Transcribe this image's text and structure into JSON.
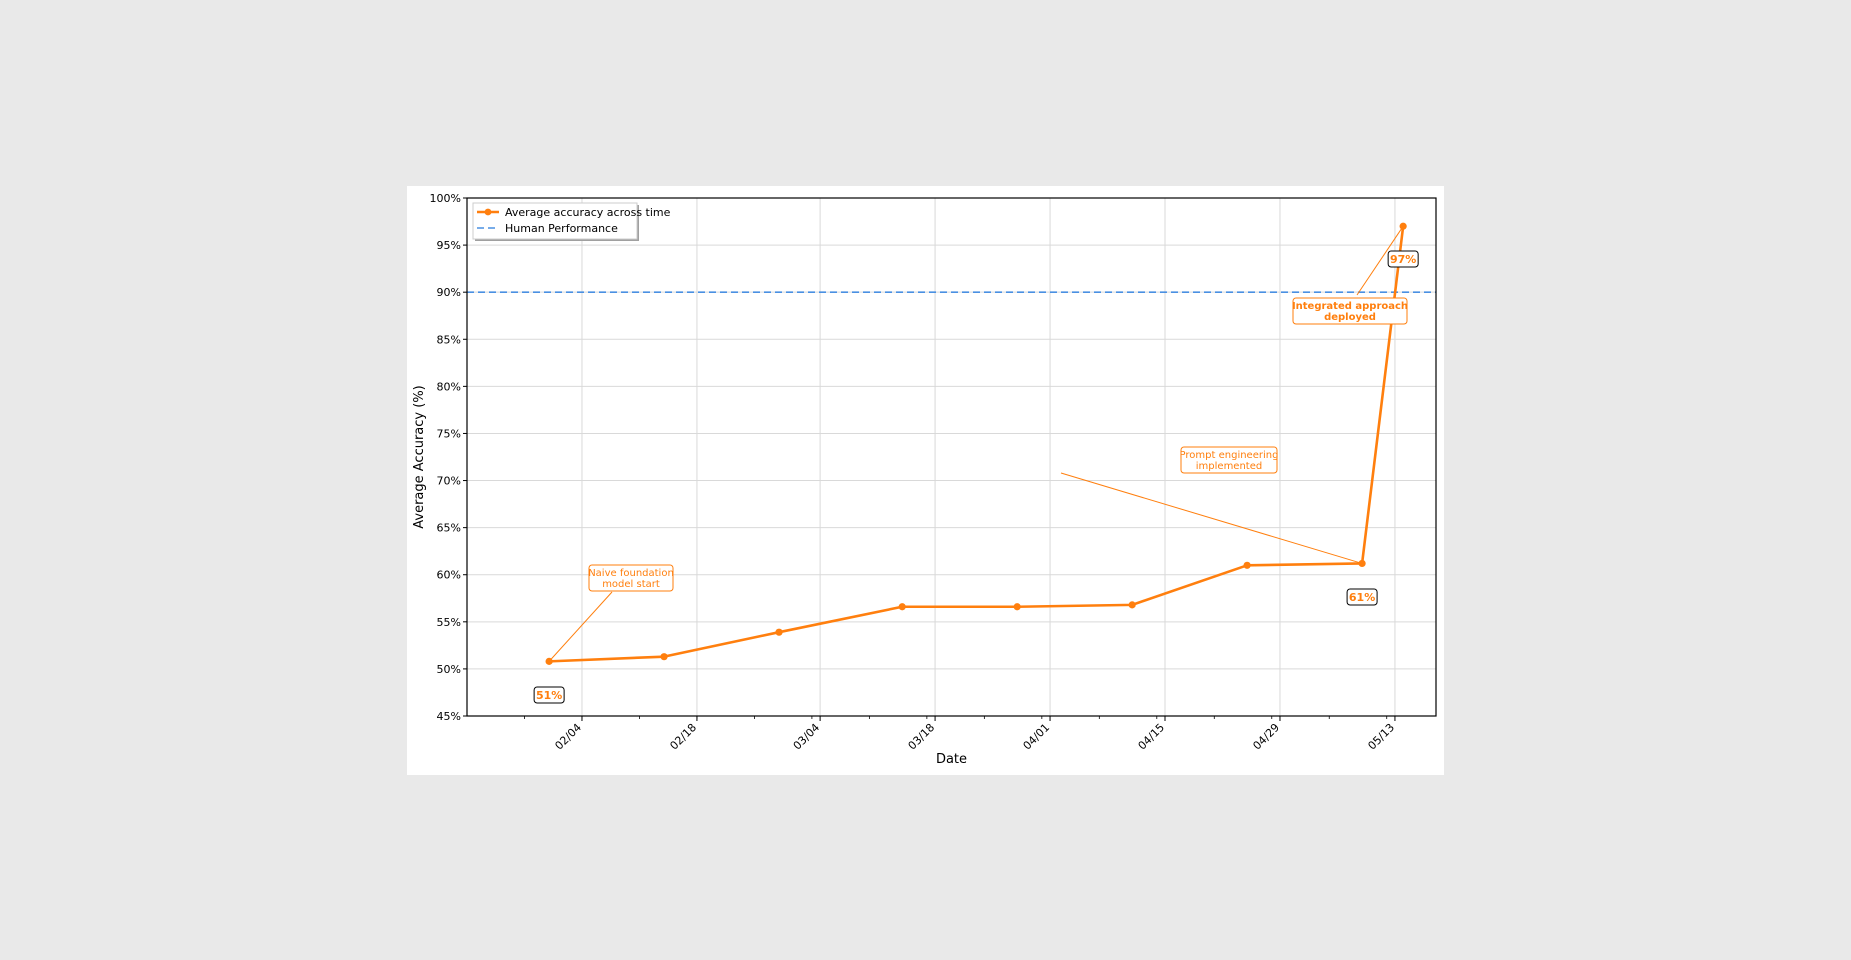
{
  "chart_data": {
    "type": "line",
    "xlabel": "Date",
    "ylabel": "Average Accuracy (%)",
    "ylim": [
      45,
      100
    ],
    "y_ticks": [
      45,
      50,
      55,
      60,
      65,
      70,
      75,
      80,
      85,
      90,
      95,
      100
    ],
    "y_tick_format": "%",
    "x_ticks": [
      "02/04",
      "02/18",
      "03/04",
      "03/18",
      "04/01",
      "04/15",
      "04/29",
      "05/13"
    ],
    "grid": true,
    "legend_position": "top-left",
    "series": [
      {
        "name": "Average accuracy across time",
        "color": "#ff7f0e",
        "marker": "circle",
        "x": [
          "01/31",
          "02/14",
          "02/28",
          "03/14",
          "03/28",
          "04/11",
          "04/25",
          "05/09",
          "05/14"
        ],
        "values": [
          50.8,
          51.3,
          53.9,
          56.6,
          56.6,
          56.8,
          61.0,
          61.2,
          97.0
        ]
      }
    ],
    "reference_lines": [
      {
        "name": "Human Performance",
        "value": 90,
        "color": "#4a90e2",
        "style": "dashed"
      }
    ],
    "annotations": [
      {
        "text": [
          "Naive foundation",
          "model start"
        ],
        "bold": false
      },
      {
        "text": [
          "Prompt engineering",
          "implemented"
        ],
        "bold": false
      },
      {
        "text": [
          "Integrated approach",
          "deployed"
        ],
        "bold": true
      }
    ],
    "value_labels": [
      "51%",
      "61%",
      "97%"
    ]
  }
}
